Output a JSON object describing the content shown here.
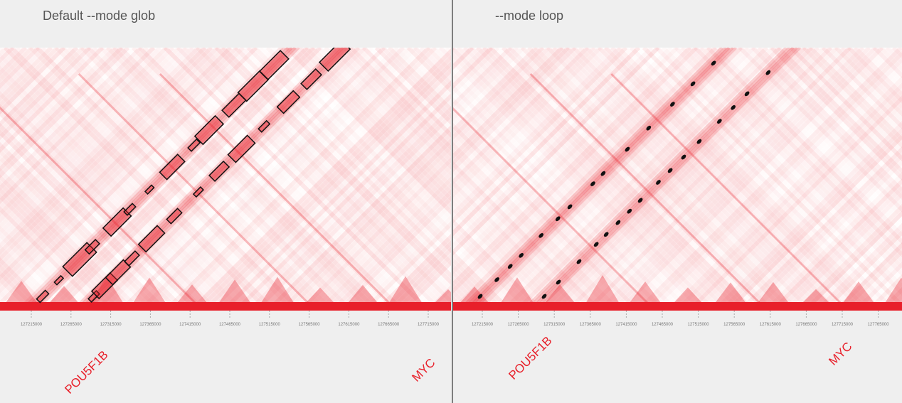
{
  "panels": [
    {
      "title": "Default --mode glob",
      "ticks": [
        "127215000",
        "127265000",
        "127315000",
        "127365000",
        "127415000",
        "127465000",
        "127515000",
        "127565000",
        "127615000",
        "127665000",
        "127715000"
      ],
      "genes": [
        "POU5F1B",
        "MYC"
      ]
    },
    {
      "title": "--mode loop",
      "ticks": [
        "127215000",
        "127265000",
        "127315000",
        "127365000",
        "127415000",
        "127465000",
        "127515000",
        "127565000",
        "127615000",
        "127665000",
        "127715000",
        "127765000"
      ],
      "genes": [
        "POU5F1B",
        "MYC"
      ]
    }
  ]
}
